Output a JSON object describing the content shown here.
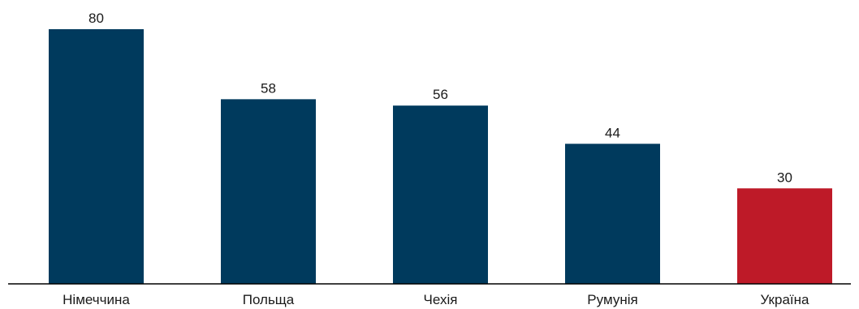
{
  "chart_data": {
    "type": "bar",
    "categories": [
      "Німеччина",
      "Польща",
      "Чехія",
      "Румунія",
      "Україна"
    ],
    "values": [
      80,
      58,
      56,
      44,
      30
    ],
    "colors": [
      "#003a5d",
      "#003a5d",
      "#003a5d",
      "#003a5d",
      "#be1a28"
    ],
    "axis_color": "#000000",
    "ylim": [
      0,
      80
    ],
    "grid": false,
    "title": "",
    "xlabel": "",
    "ylabel": ""
  }
}
